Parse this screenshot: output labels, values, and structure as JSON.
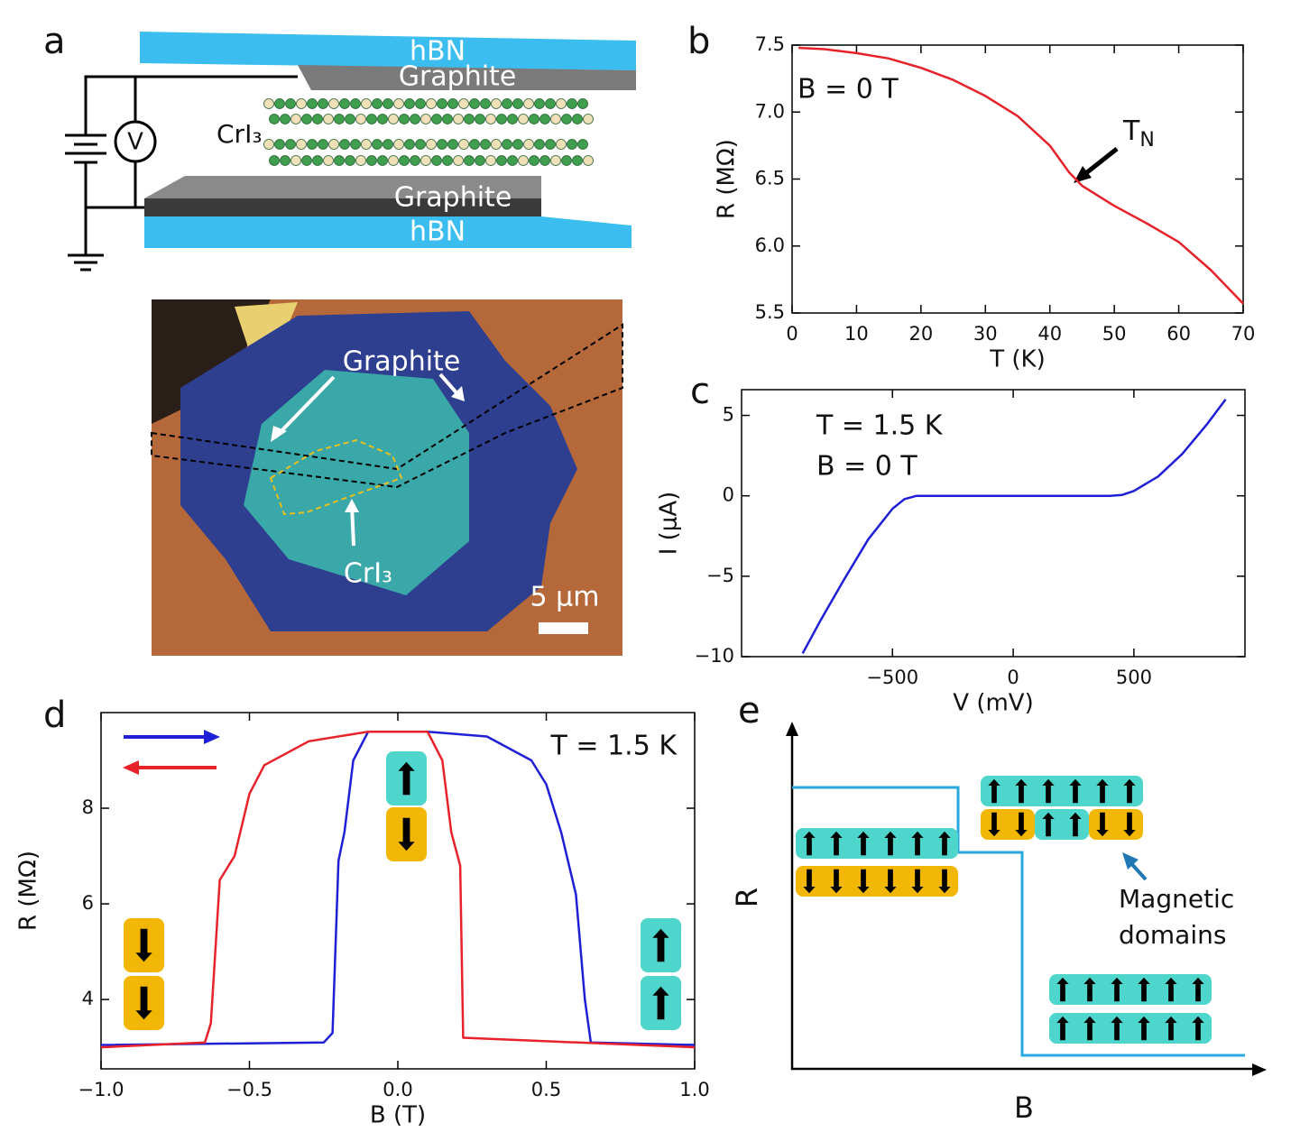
{
  "panel_labels": [
    "a",
    "b",
    "c",
    "d",
    "e"
  ],
  "schematic": {
    "top_layer": "hBN",
    "top_electrode": "Graphite",
    "middle": "CrI₃",
    "bottom_electrode": "Graphite",
    "bottom_layer": "hBN",
    "meter": "V"
  },
  "micrograph": {
    "labels": [
      "Graphite",
      "CrI₃"
    ],
    "scale_bar": "5 μm"
  },
  "diagram": {
    "xlabel": "B",
    "ylabel": "R",
    "annotation": [
      "Magnetic",
      "domains"
    ]
  },
  "chart_data": [
    {
      "type": "line",
      "xlabel": "T (K)",
      "ylabel": "R (MΩ)",
      "annotations": [
        "B = 0 T"
      ],
      "marker_label": {
        "text": "T",
        "subscript": "N"
      },
      "x": [
        1,
        5,
        10,
        15,
        20,
        25,
        30,
        35,
        40,
        43,
        45,
        50,
        55,
        60,
        65,
        70
      ],
      "values": [
        7.48,
        7.47,
        7.44,
        7.4,
        7.33,
        7.24,
        7.12,
        6.97,
        6.75,
        6.55,
        6.45,
        6.3,
        6.17,
        6.03,
        5.82,
        5.57
      ],
      "color": "#e8222a",
      "xlim": [
        0,
        70
      ],
      "ylim": [
        5.5,
        7.5
      ],
      "xticks": [
        0,
        10,
        20,
        30,
        40,
        50,
        60,
        70
      ],
      "yticks": [
        5.5,
        {
          "value": 6,
          "label": "6.0"
        },
        6.5,
        {
          "value": 7,
          "label": "7.0"
        },
        7.5
      ]
    },
    {
      "type": "line",
      "xlabel": "V (mV)",
      "ylabel": "I (μA)",
      "annotations": [
        "T = 1.5 K",
        "B = 0 T"
      ],
      "x": [
        -872,
        -800,
        -700,
        -600,
        -500,
        -450,
        -400,
        0,
        400,
        450,
        500,
        600,
        700,
        800,
        880
      ],
      "values": [
        -9.8,
        -7.8,
        -5.2,
        -2.7,
        -0.8,
        -0.2,
        0,
        0,
        0,
        0.05,
        0.3,
        1.2,
        2.6,
        4.4,
        6.0
      ],
      "color": "#1f1fd6",
      "xlim": [
        -1125,
        960
      ],
      "ylim": [
        -10,
        6.6
      ],
      "xticks": [
        {
          "value": -500,
          "label": "−500"
        },
        0,
        500
      ],
      "yticks": [
        {
          "value": -10,
          "label": "−10"
        },
        {
          "value": -5,
          "label": "−5"
        },
        0,
        5
      ]
    },
    {
      "type": "line",
      "xlabel": "B (T)",
      "ylabel": "R (MΩ)",
      "annotations": [
        "T = 1.5 K"
      ],
      "series": [
        {
          "color": "#1f1fd6",
          "x": [
            -1,
            -0.25,
            -0.22,
            -0.2,
            -0.18,
            -0.15,
            -0.1,
            0.1,
            0.3,
            0.45,
            0.5,
            0.55,
            0.6,
            0.63,
            0.65,
            1
          ],
          "values": [
            3.05,
            3.1,
            3.3,
            6.9,
            7.5,
            9.0,
            9.6,
            9.6,
            9.5,
            9.0,
            8.5,
            7.5,
            6.2,
            4.0,
            3.1,
            3.05
          ]
        },
        {
          "color": "#e8222a",
          "x": [
            1,
            0.22,
            0.21,
            0.18,
            0.15,
            0.1,
            -0.1,
            -0.3,
            -0.45,
            -0.5,
            -0.55,
            -0.6,
            -0.63,
            -0.65,
            -1
          ],
          "values": [
            3.0,
            3.2,
            6.8,
            7.5,
            9.0,
            9.6,
            9.6,
            9.4,
            8.9,
            8.3,
            7.0,
            6.5,
            3.5,
            3.1,
            3.0
          ]
        }
      ],
      "xlim": [
        -1,
        1
      ],
      "ylim": [
        2.55,
        10
      ],
      "xticks": [
        {
          "value": -1,
          "label": "−1.0"
        },
        {
          "value": -0.5,
          "label": "−0.5"
        },
        {
          "value": 0,
          "label": "0.0"
        },
        {
          "value": 0.5,
          "label": "0.5"
        },
        {
          "value": 1,
          "label": "1.0"
        }
      ],
      "yticks": [
        4,
        6,
        8
      ]
    }
  ]
}
